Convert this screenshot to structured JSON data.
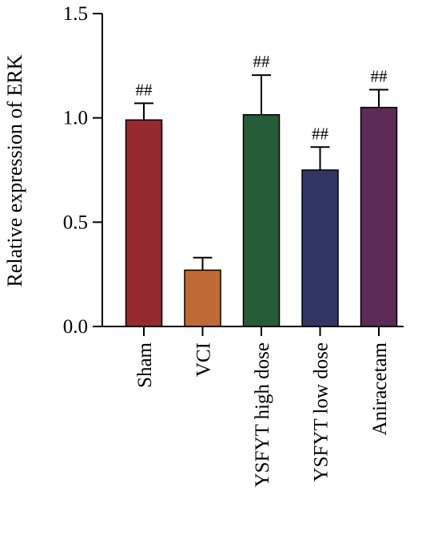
{
  "chart_data": {
    "type": "bar",
    "categories": [
      "Sham",
      "VCI",
      "YSFYT high dose",
      "YSFYT low dose",
      "Aniracetam"
    ],
    "values": [
      0.99,
      0.27,
      1.015,
      0.75,
      1.05
    ],
    "errors": [
      0.08,
      0.06,
      0.19,
      0.11,
      0.085
    ],
    "annotations": [
      "##",
      "",
      "##",
      "##",
      "##"
    ],
    "colors": [
      "#962a31",
      "#bf6a35",
      "#265c37",
      "#313665",
      "#5c2b56"
    ],
    "ylabel": "Relative expression of ERK",
    "xlabel": "",
    "ylim": [
      0,
      1.5
    ],
    "yticks": [
      0.0,
      0.5,
      1.0,
      1.5
    ],
    "ytick_labels": [
      "0.0",
      "0.5",
      "1.0",
      "1.5"
    ],
    "grid": false
  }
}
